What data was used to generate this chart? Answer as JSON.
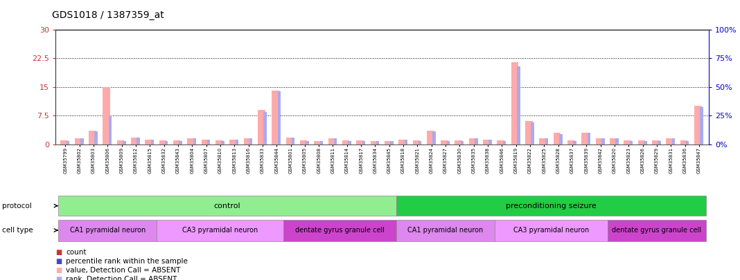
{
  "title": "GDS1018 / 1387359_at",
  "ylim_left": [
    0,
    30
  ],
  "ylim_right": [
    0,
    100
  ],
  "yticks_left": [
    0,
    7.5,
    15,
    22.5,
    30
  ],
  "yticks_right": [
    0,
    25,
    50,
    75,
    100
  ],
  "samples": [
    "GSM35799",
    "GSM35802",
    "GSM35803",
    "GSM35806",
    "GSM35809",
    "GSM35812",
    "GSM35815",
    "GSM35832",
    "GSM35843",
    "GSM35804",
    "GSM35807",
    "GSM35810",
    "GSM35813",
    "GSM35816",
    "GSM35833",
    "GSM35844",
    "GSM35801",
    "GSM35805",
    "GSM35808",
    "GSM35811",
    "GSM35814",
    "GSM35817",
    "GSM35834",
    "GSM35845",
    "GSM35818",
    "GSM35821",
    "GSM35824",
    "GSM35827",
    "GSM35830",
    "GSM35835",
    "GSM35838",
    "GSM35846",
    "GSM35819",
    "GSM35822",
    "GSM35825",
    "GSM35828",
    "GSM35837",
    "GSM35839",
    "GSM35842",
    "GSM35820",
    "GSM35823",
    "GSM35826",
    "GSM35829",
    "GSM35831",
    "GSM35836",
    "GSM35847"
  ],
  "count_values": [
    1.0,
    1.5,
    3.5,
    15.0,
    1.0,
    1.8,
    1.2,
    1.0,
    1.0,
    1.5,
    1.2,
    1.0,
    1.2,
    1.5,
    9.0,
    14.0,
    1.8,
    1.0,
    0.8,
    1.5,
    1.0,
    1.0,
    0.8,
    0.8,
    1.2,
    1.0,
    3.5,
    1.0,
    1.0,
    1.5,
    1.2,
    1.0,
    21.5,
    6.0,
    1.5,
    3.0,
    1.0,
    3.0,
    1.5,
    1.5,
    1.0,
    1.0,
    1.0,
    1.5,
    1.0,
    10.0
  ],
  "rank_values": [
    3.0,
    5.0,
    11.0,
    25.0,
    3.0,
    5.5,
    4.0,
    3.0,
    3.0,
    5.0,
    4.0,
    3.0,
    4.0,
    5.0,
    28.0,
    46.0,
    6.0,
    3.0,
    2.5,
    5.0,
    3.0,
    3.0,
    2.5,
    2.5,
    4.0,
    3.0,
    11.0,
    3.0,
    3.0,
    5.0,
    4.0,
    3.0,
    68.0,
    19.0,
    5.0,
    9.0,
    3.0,
    10.0,
    5.0,
    5.0,
    3.0,
    3.0,
    3.0,
    5.0,
    3.0,
    32.0
  ],
  "absent_flags": [
    true,
    true,
    true,
    true,
    true,
    true,
    true,
    true,
    true,
    true,
    true,
    true,
    true,
    true,
    true,
    true,
    true,
    true,
    true,
    true,
    true,
    true,
    true,
    true,
    true,
    true,
    true,
    true,
    true,
    true,
    true,
    true,
    true,
    true,
    true,
    true,
    true,
    true,
    true,
    true,
    true,
    true,
    true,
    true,
    true,
    true
  ],
  "protocol_groups": [
    {
      "label": "control",
      "start": 0,
      "end": 23,
      "color": "#90ee90"
    },
    {
      "label": "preconditioning seizure",
      "start": 24,
      "end": 45,
      "color": "#22cc44"
    }
  ],
  "cell_type_groups": [
    {
      "label": "CA1 pyramidal neuron",
      "start": 0,
      "end": 6,
      "color": "#dd88ee"
    },
    {
      "label": "CA3 pyramidal neuron",
      "start": 7,
      "end": 15,
      "color": "#ee99ff"
    },
    {
      "label": "dentate gyrus granule cell",
      "start": 16,
      "end": 23,
      "color": "#cc44cc"
    },
    {
      "label": "CA1 pyramidal neuron",
      "start": 24,
      "end": 30,
      "color": "#dd88ee"
    },
    {
      "label": "CA3 pyramidal neuron",
      "start": 31,
      "end": 38,
      "color": "#ee99ff"
    },
    {
      "label": "dentate gyrus granule cell",
      "start": 39,
      "end": 45,
      "color": "#cc44cc"
    }
  ],
  "count_color_present": "#cc3333",
  "rank_color_present": "#4444cc",
  "count_color_absent": "#ffaaaa",
  "rank_color_absent": "#aaaaee",
  "left_axis_color": "#cc3333",
  "right_axis_color": "#0000cc",
  "legend_items": [
    {
      "label": "count",
      "color": "#cc3333"
    },
    {
      "label": "percentile rank within the sample",
      "color": "#4444cc"
    },
    {
      "label": "value, Detection Call = ABSENT",
      "color": "#ffaaaa"
    },
    {
      "label": "rank, Detection Call = ABSENT",
      "color": "#aaaaee"
    }
  ]
}
